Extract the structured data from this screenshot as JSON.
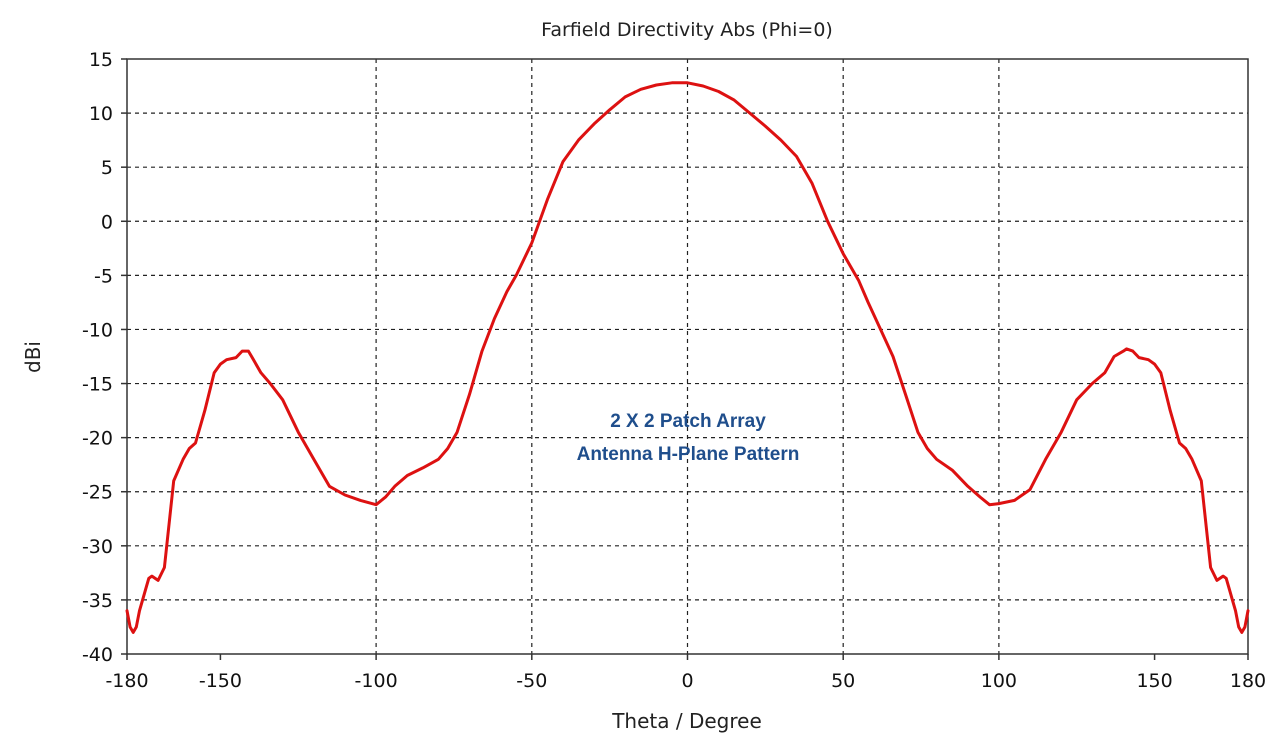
{
  "chart_data": {
    "type": "line",
    "title": "Farfield Directivity Abs (Phi=0)",
    "xlabel": "Theta / Degree",
    "ylabel": "dBi",
    "xlim": [
      -180,
      180
    ],
    "ylim": [
      -40,
      15
    ],
    "xticks": [
      -180,
      -150,
      -100,
      -50,
      0,
      50,
      100,
      150,
      180
    ],
    "yticks": [
      15,
      10,
      5,
      0,
      -5,
      -10,
      -15,
      -20,
      -25,
      -30,
      -35,
      -40
    ],
    "grid": true,
    "grid_style": "dashed",
    "annotation": [
      "2 X 2 Patch Array",
      "Antenna H-Plane Pattern"
    ],
    "colors": {
      "series": "#dd1111",
      "annotation": "#1f4e8c",
      "grid": "#222222",
      "axis": "#333333"
    },
    "series": [
      {
        "x": [
          -180,
          -179,
          -178,
          -177,
          -176,
          -175,
          -174,
          -173,
          -172,
          -170,
          -168,
          -165,
          -162,
          -160,
          -158,
          -155,
          -152,
          -150,
          -148,
          -145,
          -143,
          -141,
          -140,
          -137,
          -134,
          -130,
          -125,
          -120,
          -115,
          -110,
          -105,
          -100,
          -97,
          -94,
          -90,
          -85,
          -80,
          -77,
          -74,
          -70,
          -66,
          -62,
          -58,
          -55,
          -50,
          -45,
          -40,
          -35,
          -30,
          -25,
          -20,
          -15,
          -10,
          -5,
          0,
          5,
          10,
          15,
          20,
          25,
          30,
          35,
          40,
          45,
          50,
          55,
          58,
          62,
          66,
          70,
          74,
          77,
          80,
          85,
          90,
          94,
          97,
          100,
          105,
          110,
          115,
          120,
          125,
          130,
          134,
          137,
          140,
          141,
          143,
          145,
          148,
          150,
          152,
          155,
          158,
          160,
          162,
          165,
          168,
          170,
          172,
          173,
          174,
          175,
          176,
          177,
          178,
          179,
          180
        ],
        "y": [
          -36,
          -37.5,
          -38,
          -37.5,
          -36,
          -35,
          -34,
          -33,
          -32.8,
          -33.2,
          -32,
          -24,
          -22,
          -21,
          -20.5,
          -17.5,
          -14,
          -13.2,
          -12.8,
          -12.6,
          -12,
          -12,
          -12.5,
          -14,
          -15,
          -16.5,
          -19.5,
          -22,
          -24.5,
          -25.3,
          -25.8,
          -26.2,
          -25.5,
          -24.5,
          -23.5,
          -22.8,
          -22,
          -21,
          -19.5,
          -16,
          -12,
          -9,
          -6.5,
          -5,
          -2,
          2,
          5.5,
          7.5,
          9,
          10.3,
          11.5,
          12.2,
          12.6,
          12.8,
          12.8,
          12.5,
          12,
          11.2,
          10,
          8.8,
          7.5,
          6,
          3.5,
          0,
          -3,
          -5.5,
          -7.5,
          -10,
          -12.5,
          -16,
          -19.5,
          -21,
          -22,
          -23,
          -24.5,
          -25.5,
          -26.2,
          -26.1,
          -25.8,
          -24.8,
          -22,
          -19.5,
          -16.5,
          -15,
          -14,
          -12.5,
          -12,
          -11.8,
          -12,
          -12.6,
          -12.8,
          -13.2,
          -14,
          -17.5,
          -20.5,
          -21,
          -22,
          -24,
          -32,
          -33.2,
          -32.8,
          -33,
          -34,
          -35,
          -36,
          -37.5,
          -38,
          -37.5,
          -36
        ]
      }
    ]
  }
}
